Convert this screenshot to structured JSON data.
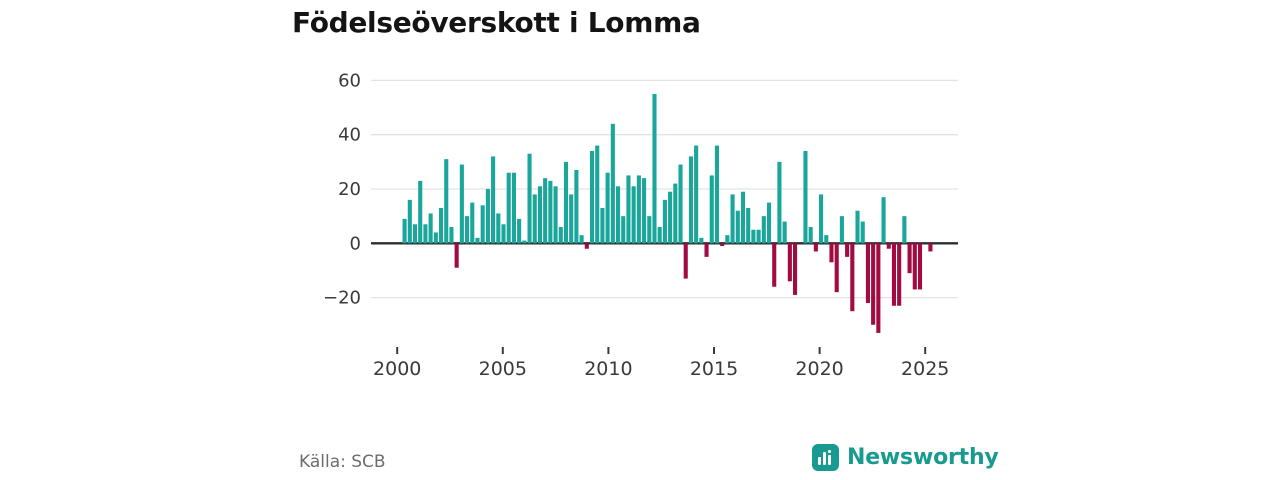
{
  "header": {
    "title": "Födelseöverskott i Lomma"
  },
  "footer": {
    "source": "Källa: SCB",
    "brand": "Newsworthy"
  },
  "chart_data": {
    "type": "bar",
    "title": "Födelseöverskott i Lomma",
    "x_unit": "quarter",
    "start_year": 2000,
    "start_quarter": 1,
    "end_year": 2025,
    "end_quarter": 2,
    "values": [
      9,
      16,
      7,
      23,
      7,
      11,
      4,
      13,
      31,
      6,
      -9,
      29,
      10,
      15,
      2,
      14,
      20,
      32,
      11,
      7,
      26,
      26,
      9,
      1,
      33,
      18,
      21,
      24,
      23,
      21,
      6,
      30,
      18,
      27,
      3,
      -2,
      34,
      36,
      13,
      26,
      44,
      21,
      10,
      25,
      21,
      25,
      24,
      10,
      55,
      6,
      16,
      19,
      22,
      29,
      -13,
      32,
      36,
      2,
      -5,
      25,
      36,
      -1,
      3,
      18,
      12,
      19,
      13,
      5,
      5,
      10,
      15,
      -16,
      30,
      8,
      -14,
      -19,
      0,
      34,
      6,
      -3,
      18,
      3,
      -7,
      -18,
      10,
      -5,
      -25,
      12,
      8,
      -22,
      -30,
      -33,
      17,
      -2,
      -23,
      -23,
      10,
      -11,
      -17,
      -17,
      0,
      -3
    ],
    "y_ticks": [
      60,
      40,
      20,
      0,
      -20
    ],
    "x_ticks": [
      2000,
      2005,
      2010,
      2015,
      2020,
      2025
    ],
    "ylim": [
      -38,
      63
    ],
    "grid": true,
    "legend": "none",
    "positive_color": "#1AA69B",
    "negative_color": "#A20A42"
  }
}
